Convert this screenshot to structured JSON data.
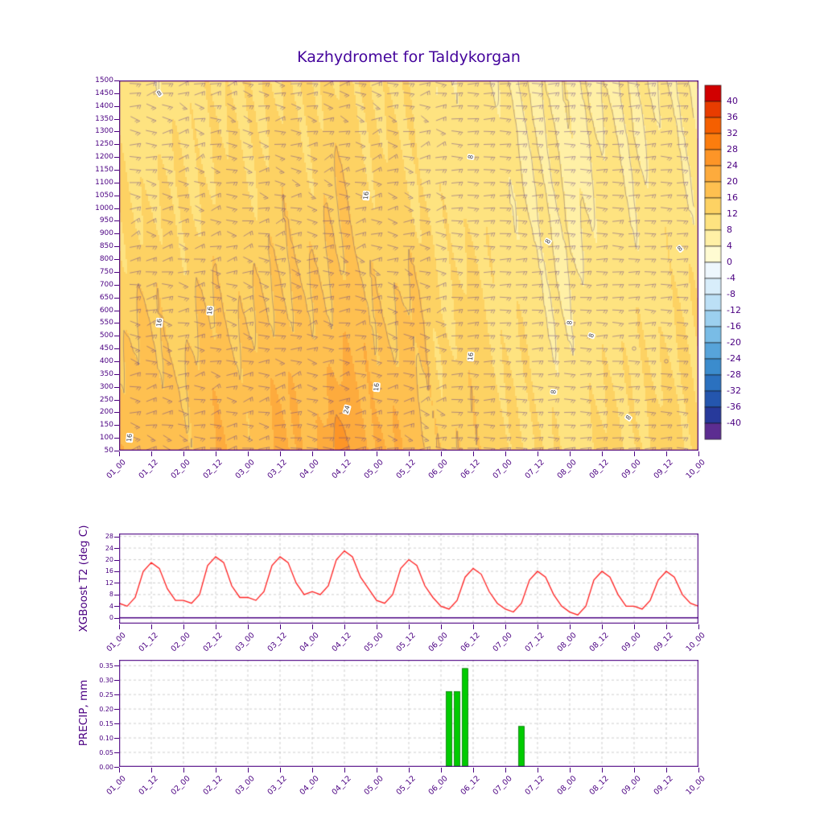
{
  "title": "Kazhydromet for Taldykorgan",
  "theme": {
    "axis_color": "#4b0082",
    "title_color": "#44049c",
    "grid_color": "#b8b8b8",
    "contour_line_color": "#6f5a73",
    "wind_barb_color": "#5f3c8c"
  },
  "chart_data": [
    {
      "type": "heatmap",
      "name": "temperature-time-height-section",
      "title": "Kazhydromet for Taldykorgan",
      "x_ticklabels": [
        "01_00",
        "01_12",
        "02_00",
        "02_12",
        "03_00",
        "03_12",
        "04_00",
        "04_12",
        "05_00",
        "05_12",
        "06_00",
        "06_12",
        "07_00",
        "07_12",
        "08_00",
        "08_12",
        "09_00",
        "09_12",
        "10_00"
      ],
      "x_total_hours": 216,
      "y_levels": [
        50,
        100,
        150,
        200,
        250,
        300,
        350,
        400,
        450,
        500,
        550,
        600,
        650,
        700,
        750,
        800,
        850,
        900,
        950,
        1000,
        1050,
        1100,
        1150,
        1200,
        1250,
        1300,
        1350,
        1400,
        1450,
        1500
      ],
      "ylim": [
        50,
        1500
      ],
      "grid": {
        "time_hours_step": 12,
        "height_rows": [
          50,
          250,
          500,
          750,
          1000,
          1250,
          1500
        ],
        "values": [
          [
            18,
            17,
            15,
            13,
            12,
            11,
            10
          ],
          [
            19,
            18,
            16,
            14,
            12,
            10,
            8
          ],
          [
            17,
            16,
            14,
            13,
            12,
            11,
            10
          ],
          [
            20,
            19,
            17,
            15,
            13,
            12,
            11
          ],
          [
            18,
            17,
            15,
            14,
            13,
            12,
            11
          ],
          [
            21,
            20,
            18,
            16,
            14,
            13,
            12
          ],
          [
            19,
            18,
            16,
            15,
            14,
            13,
            12
          ],
          [
            26,
            22,
            19,
            17,
            16,
            14,
            13
          ],
          [
            20,
            18,
            16,
            14,
            13,
            12,
            11
          ],
          [
            19,
            18,
            17,
            15,
            13,
            12,
            11
          ],
          [
            14,
            13,
            12,
            11,
            10,
            9,
            9
          ],
          [
            16,
            15,
            14,
            12,
            11,
            10,
            9
          ],
          [
            13,
            12,
            11,
            10,
            9,
            9,
            8
          ],
          [
            12,
            11,
            10,
            9,
            8,
            8,
            7
          ],
          [
            10,
            9,
            8,
            7,
            7,
            7,
            7
          ],
          [
            13,
            12,
            11,
            10,
            9,
            8,
            7
          ],
          [
            12,
            11,
            10,
            9,
            9,
            8,
            8
          ],
          [
            14,
            13,
            12,
            11,
            10,
            9,
            8
          ],
          [
            13,
            12,
            11,
            10,
            9,
            9,
            8
          ]
        ]
      },
      "contour_levels": [
        8,
        16,
        24
      ],
      "contour_labels": [
        {
          "text": "8",
          "hour": 15,
          "level": 1450,
          "rot": -35
        },
        {
          "text": "8",
          "hour": 131,
          "level": 1200,
          "rot": -80
        },
        {
          "text": "16",
          "hour": 92,
          "level": 1050,
          "rot": -85
        },
        {
          "text": "8",
          "hour": 160,
          "level": 870,
          "rot": -60
        },
        {
          "text": "8",
          "hour": 209,
          "level": 840,
          "rot": -40
        },
        {
          "text": "16",
          "hour": 15,
          "level": 550,
          "rot": -85
        },
        {
          "text": "16",
          "hour": 34,
          "level": 600,
          "rot": -85
        },
        {
          "text": "8",
          "hour": 168,
          "level": 550,
          "rot": -85
        },
        {
          "text": "8",
          "hour": 176,
          "level": 500,
          "rot": -70
        },
        {
          "text": "16",
          "hour": 131,
          "level": 420,
          "rot": -85
        },
        {
          "text": "16",
          "hour": 96,
          "level": 300,
          "rot": -85
        },
        {
          "text": "24",
          "hour": 85,
          "level": 210,
          "rot": -75
        },
        {
          "text": "8",
          "hour": 162,
          "level": 280,
          "rot": -85
        },
        {
          "text": "8",
          "hour": 190,
          "level": 180,
          "rot": -55
        },
        {
          "text": "16",
          "hour": 4,
          "level": 100,
          "rot": -85
        }
      ],
      "wind_barbs_present": true,
      "colorbar": {
        "ticks": [
          40,
          36,
          32,
          28,
          24,
          20,
          16,
          12,
          8,
          4,
          0,
          -4,
          -8,
          -12,
          -16,
          -20,
          -24,
          -28,
          -32,
          -36,
          -40
        ],
        "vmin": -44,
        "vmax": 44,
        "band_colors": [
          "#d10000",
          "#e83c00",
          "#f55f00",
          "#fb7d0e",
          "#fd9527",
          "#fdab3d",
          "#fec050",
          "#fdd263",
          "#fee380",
          "#fff0a6",
          "#fffbd2",
          "#eef7fd",
          "#d8edfa",
          "#bce0f6",
          "#9cd0ef",
          "#79bce6",
          "#57a4da",
          "#3b8ccd",
          "#2b71bf",
          "#2456ae",
          "#273a9b",
          "#5c2d91"
        ]
      }
    },
    {
      "type": "line",
      "name": "xgboost-t2-series",
      "ylabel": "XGBoost T2 (deg C)",
      "yticks": [
        0,
        4,
        8,
        12,
        16,
        20,
        24,
        28
      ],
      "ylim": [
        -2,
        29
      ],
      "x_hours_step": 3,
      "x_total_hours": 216,
      "x_ticklabels": [
        "01_00",
        "01_12",
        "02_00",
        "02_12",
        "03_00",
        "03_12",
        "04_00",
        "04_12",
        "05_00",
        "05_12",
        "06_00",
        "06_12",
        "07_00",
        "07_12",
        "08_00",
        "08_12",
        "09_00",
        "09_12",
        "10_00"
      ],
      "line_color": "#ff2020",
      "values": [
        5,
        4,
        7,
        16,
        19,
        17,
        10,
        6,
        6,
        5,
        8,
        18,
        21,
        19,
        11,
        7,
        7,
        6,
        9,
        18,
        21,
        19,
        12,
        8,
        9,
        8,
        11,
        20,
        23,
        21,
        14,
        10,
        6,
        5,
        8,
        17,
        20,
        18,
        11,
        7,
        4,
        3,
        6,
        14,
        17,
        15,
        9,
        5,
        3,
        2,
        5,
        13,
        16,
        14,
        8,
        4,
        2,
        1,
        4,
        13,
        16,
        14,
        8,
        4,
        4,
        3,
        6,
        13,
        16,
        14,
        8,
        5,
        4
      ]
    },
    {
      "type": "bar",
      "name": "precip-series",
      "ylabel": "PRECIP, mm",
      "yticks": [
        0.0,
        0.05,
        0.1,
        0.15,
        0.2,
        0.25,
        0.3,
        0.35
      ],
      "ylim": [
        0,
        0.37
      ],
      "x_total_hours": 216,
      "x_ticklabels": [
        "01_00",
        "01_12",
        "02_00",
        "02_12",
        "03_00",
        "03_12",
        "04_00",
        "04_12",
        "05_00",
        "05_12",
        "06_00",
        "06_12",
        "07_00",
        "07_12",
        "08_00",
        "08_12",
        "09_00",
        "09_12",
        "10_00"
      ],
      "bar_color": "#00cc00",
      "bar_edge_color": "#007700",
      "bars": [
        {
          "hour": 123,
          "value": 0.26
        },
        {
          "hour": 126,
          "value": 0.26
        },
        {
          "hour": 129,
          "value": 0.34
        },
        {
          "hour": 150,
          "value": 0.14
        }
      ]
    }
  ]
}
